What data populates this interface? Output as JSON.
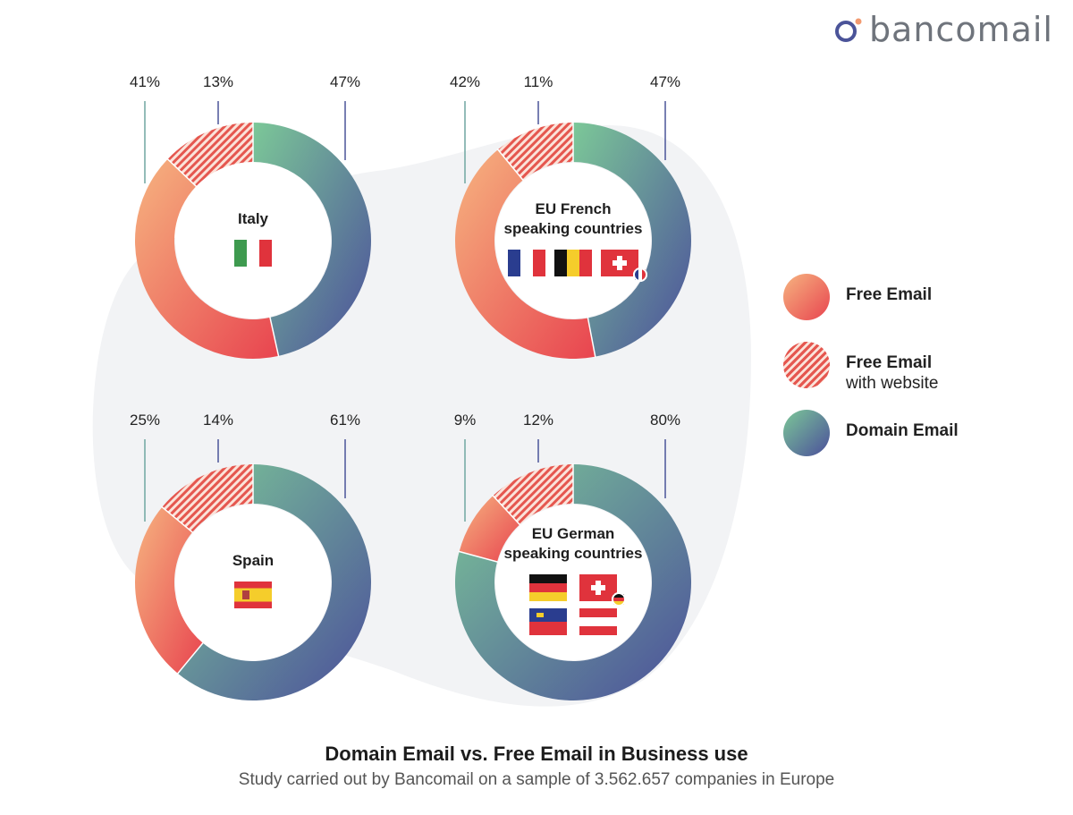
{
  "brand": {
    "name": "bancomail",
    "icon": "bancomail-logo-icon"
  },
  "colors": {
    "free": [
      "#f6b480",
      "#e8444f"
    ],
    "free_website": "#e5574f",
    "domain": [
      "#7cc898",
      "#4b4f9a"
    ],
    "rule": [
      "#8acda0",
      "#4b5499"
    ],
    "blob": "#f2f3f5"
  },
  "legend": [
    {
      "label": "Free Email",
      "sub": "",
      "key": "free"
    },
    {
      "label": "Free Email",
      "sub": "with website",
      "key": "free_website"
    },
    {
      "label": "Domain Email",
      "sub": "",
      "key": "domain"
    }
  ],
  "chart_data": [
    {
      "type": "pie",
      "title": "Italy",
      "flags": [
        "it"
      ],
      "categories": [
        "Free Email",
        "Free Email with website",
        "Domain Email"
      ],
      "values": [
        41,
        13,
        47
      ],
      "labels": [
        "41%",
        "13%",
        "47%"
      ]
    },
    {
      "type": "pie",
      "title": "EU French speaking countries",
      "flags": [
        "fr",
        "be",
        "ch-fr"
      ],
      "categories": [
        "Free Email",
        "Free Email with website",
        "Domain Email"
      ],
      "values": [
        42,
        11,
        47
      ],
      "labels": [
        "42%",
        "11%",
        "47%"
      ]
    },
    {
      "type": "pie",
      "title": "Spain",
      "flags": [
        "es"
      ],
      "categories": [
        "Free Email",
        "Free Email with website",
        "Domain Email"
      ],
      "values": [
        25,
        14,
        61
      ],
      "labels": [
        "25%",
        "14%",
        "61%"
      ]
    },
    {
      "type": "pie",
      "title": "EU German speaking countries",
      "flags": [
        "de",
        "ch-de",
        "li",
        "at"
      ],
      "categories": [
        "Free Email",
        "Free Email with website",
        "Domain Email"
      ],
      "values": [
        9,
        12,
        80
      ],
      "labels": [
        "9%",
        "12%",
        "80%"
      ]
    }
  ],
  "footer": {
    "title": "Domain Email vs. Free Email in Business use",
    "subtitle": "Study carried out by Bancomail on a sample of 3.562.657 companies in Europe"
  }
}
